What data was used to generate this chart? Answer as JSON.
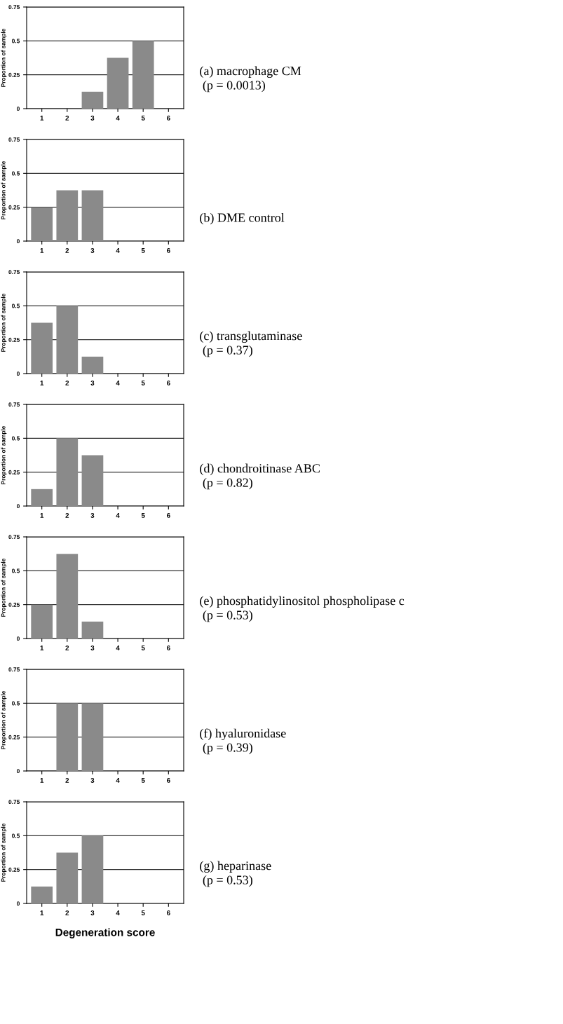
{
  "chart_data": [
    {
      "type": "bar",
      "categories": [
        "1",
        "2",
        "3",
        "4",
        "5",
        "6"
      ],
      "values": [
        0,
        0,
        0.125,
        0.375,
        0.5,
        0
      ],
      "color": "#8a8a8a",
      "ylabel": "Proportion of sample",
      "ylim": [
        0,
        0.75
      ],
      "yticks": [
        0,
        0.25,
        0.5,
        0.75
      ],
      "grid": "y",
      "annotations": [
        "(a) macrophage CM",
        "(p = 0.0013)"
      ]
    },
    {
      "type": "bar",
      "categories": [
        "1",
        "2",
        "3",
        "4",
        "5",
        "6"
      ],
      "values": [
        0.25,
        0.375,
        0.375,
        0,
        0,
        0
      ],
      "color": "#8a8a8a",
      "ylabel": "Proportion of sample",
      "ylim": [
        0,
        0.75
      ],
      "yticks": [
        0,
        0.25,
        0.5,
        0.75
      ],
      "grid": "y",
      "annotations": [
        "(b) DME control"
      ]
    },
    {
      "type": "bar",
      "categories": [
        "1",
        "2",
        "3",
        "4",
        "5",
        "6"
      ],
      "values": [
        0.375,
        0.5,
        0.125,
        0,
        0,
        0
      ],
      "color": "#8a8a8a",
      "ylabel": "Proportion of sample",
      "ylim": [
        0,
        0.75
      ],
      "yticks": [
        0,
        0.25,
        0.5,
        0.75
      ],
      "grid": "y",
      "annotations": [
        "(c) transglutaminase",
        "(p = 0.37)"
      ]
    },
    {
      "type": "bar",
      "categories": [
        "1",
        "2",
        "3",
        "4",
        "5",
        "6"
      ],
      "values": [
        0.125,
        0.5,
        0.375,
        0,
        0,
        0
      ],
      "color": "#8a8a8a",
      "ylabel": "Proportion of sample",
      "ylim": [
        0,
        0.75
      ],
      "yticks": [
        0,
        0.25,
        0.5,
        0.75
      ],
      "grid": "y",
      "annotations": [
        "(d) chondroitinase ABC",
        "(p = 0.82)"
      ]
    },
    {
      "type": "bar",
      "categories": [
        "1",
        "2",
        "3",
        "4",
        "5",
        "6"
      ],
      "values": [
        0.25,
        0.625,
        0.125,
        0,
        0,
        0
      ],
      "color": "#8a8a8a",
      "ylabel": "Proportion of sample",
      "ylim": [
        0,
        0.75
      ],
      "yticks": [
        0,
        0.25,
        0.5,
        0.75
      ],
      "grid": "y",
      "annotations": [
        "(e) phosphatidylinositol phospholipase c",
        "(p = 0.53)"
      ]
    },
    {
      "type": "bar",
      "categories": [
        "1",
        "2",
        "3",
        "4",
        "5",
        "6"
      ],
      "values": [
        0,
        0.5,
        0.5,
        0,
        0,
        0
      ],
      "color": "#8a8a8a",
      "ylabel": "Proportion of sample",
      "ylim": [
        0,
        0.75
      ],
      "yticks": [
        0,
        0.25,
        0.5,
        0.75
      ],
      "grid": "y",
      "annotations": [
        "(f) hyaluronidase",
        "(p = 0.39)"
      ]
    },
    {
      "type": "bar",
      "categories": [
        "1",
        "2",
        "3",
        "4",
        "5",
        "6"
      ],
      "values": [
        0.125,
        0.375,
        0.5,
        0,
        0,
        0
      ],
      "color": "#8a8a8a",
      "ylabel": "Proportion of sample",
      "xlabel": "Degeneration score",
      "ylim": [
        0,
        0.75
      ],
      "yticks": [
        0,
        0.25,
        0.5,
        0.75
      ],
      "grid": "y",
      "annotations": [
        "(g) heparinase",
        "(p = 0.53)"
      ]
    }
  ]
}
